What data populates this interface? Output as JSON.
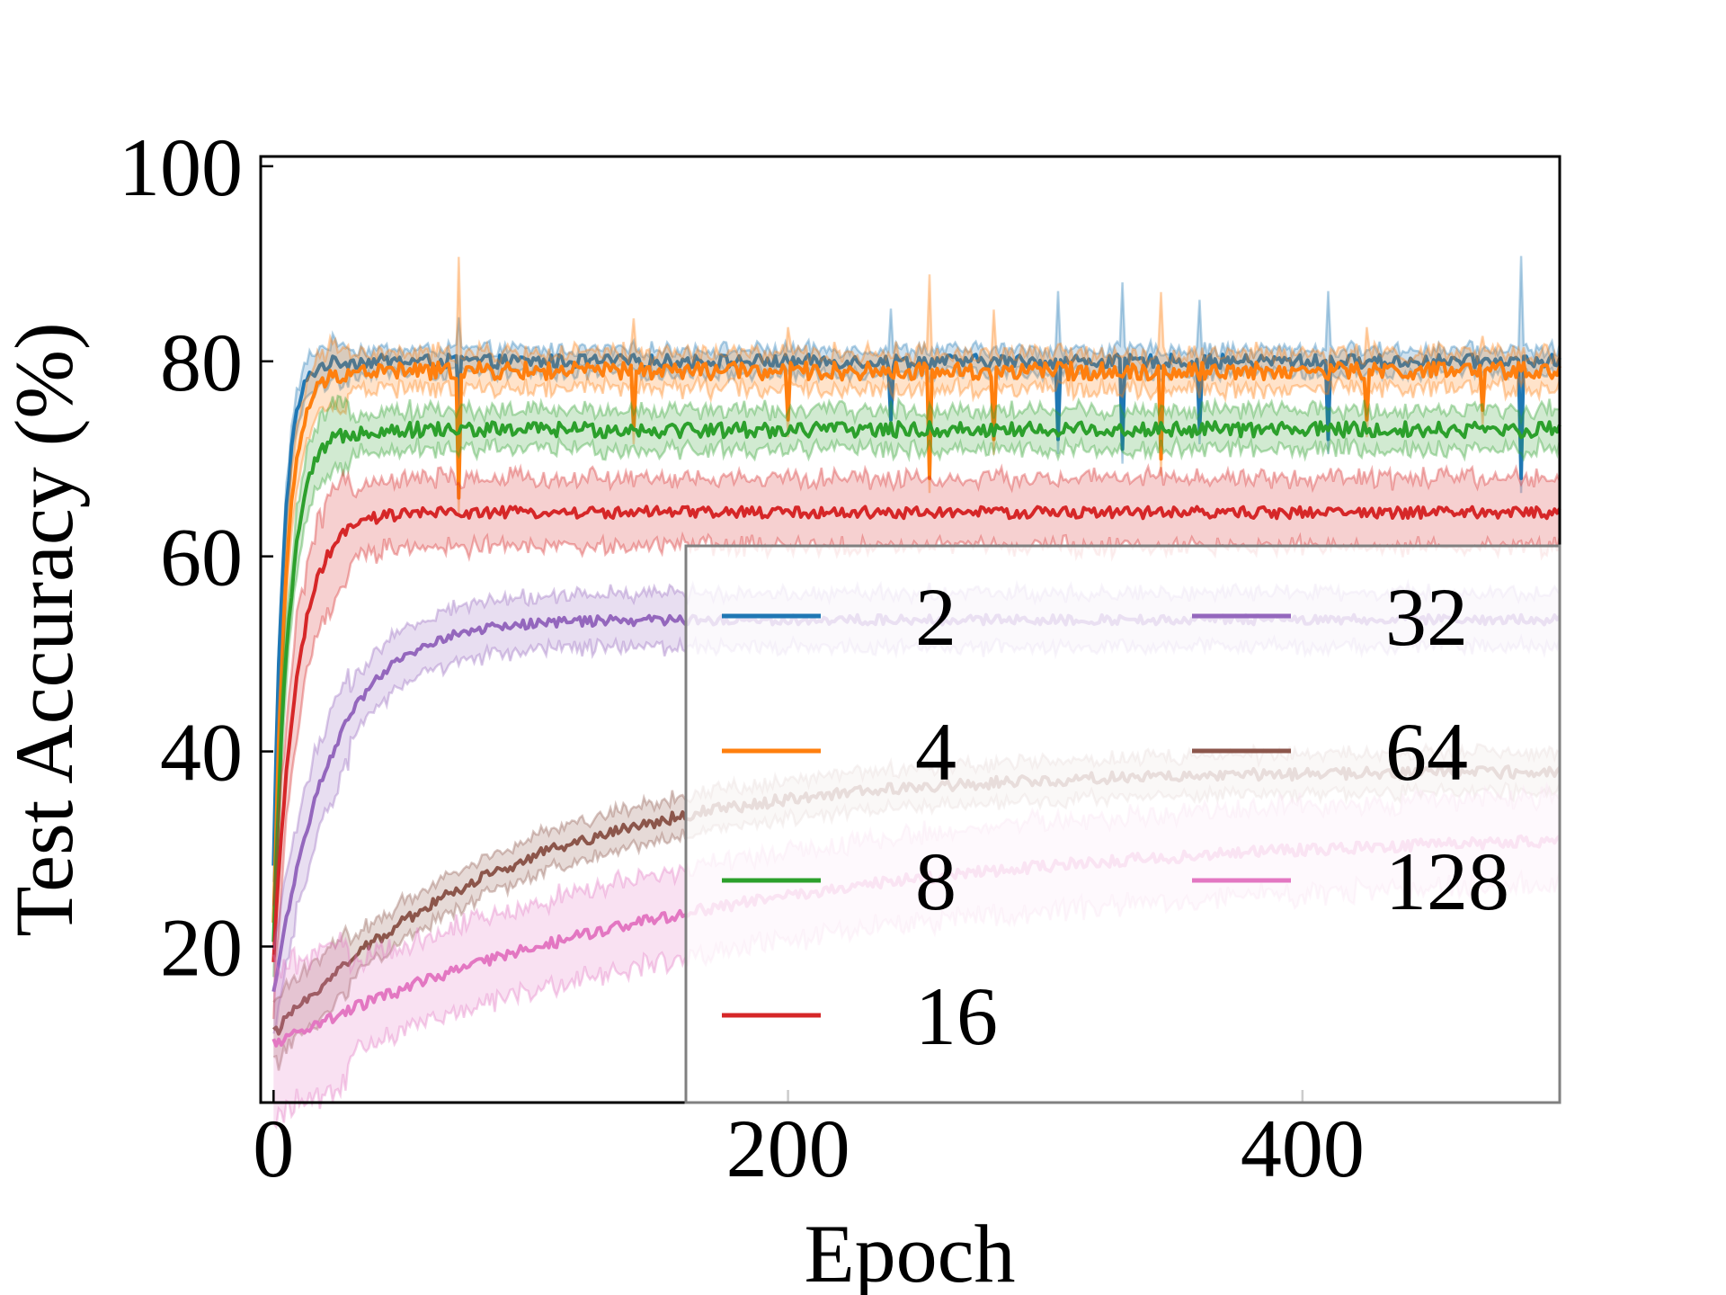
{
  "chart_data": {
    "type": "line",
    "title": "",
    "xlabel": "Epoch",
    "ylabel": "Test Accuracy (%)",
    "xlim": [
      -5,
      500
    ],
    "ylim": [
      4,
      101
    ],
    "xticks": [
      0,
      200,
      400
    ],
    "yticks": [
      20,
      40,
      60,
      80,
      100
    ],
    "xtick_labels": [
      "0",
      "200",
      "400"
    ],
    "ytick_labels": [
      "20",
      "40",
      "60",
      "80",
      "100"
    ],
    "grid": false,
    "legend": {
      "position": "lower-right",
      "columns": 2
    },
    "series": [
      {
        "name": "2",
        "color": "#1f77b4",
        "start": 28,
        "plateau": 80,
        "tau": 4,
        "noise": 0.7,
        "band": 1.2,
        "spike_dir": -1,
        "spikes": [
          [
            72,
            75
          ],
          [
            240,
            74
          ],
          [
            305,
            72
          ],
          [
            330,
            71
          ],
          [
            360,
            73
          ],
          [
            410,
            72
          ],
          [
            485,
            68
          ]
        ]
      },
      {
        "name": "4",
        "color": "#ff7f0e",
        "start": 22,
        "plateau": 79,
        "tau": 5,
        "noise": 0.9,
        "band": 1.8,
        "spike_dir": -1,
        "spikes": [
          [
            72,
            66
          ],
          [
            140,
            73
          ],
          [
            200,
            74
          ],
          [
            255,
            68
          ],
          [
            280,
            72
          ],
          [
            345,
            70
          ],
          [
            425,
            74
          ],
          [
            470,
            75
          ]
        ]
      },
      {
        "name": "8",
        "color": "#2ca02c",
        "start": 20,
        "plateau": 73,
        "tau": 6,
        "noise": 0.8,
        "band": 2.0,
        "spike_dir": 0,
        "spikes": []
      },
      {
        "name": "16",
        "color": "#d62728",
        "start": 18,
        "plateau": 64.5,
        "tau": 9,
        "noise": 0.6,
        "band": 3.5,
        "spike_dir": 0,
        "spikes": []
      },
      {
        "name": "32",
        "color": "#9467bd",
        "start": 15,
        "plateau": 53.5,
        "tau": 22,
        "noise": 0.5,
        "band": 2.8,
        "spike_dir": 0,
        "spikes": []
      },
      {
        "name": "64",
        "color": "#8c564b",
        "start": 11,
        "plateau": 38,
        "tau": 90,
        "noise": 0.6,
        "band": 2.0,
        "spike_dir": 0,
        "spikes": []
      },
      {
        "name": "128",
        "color": "#e377c2",
        "start": 10,
        "plateau": 32,
        "tau": 170,
        "noise": 0.6,
        "band": 4.5,
        "spike_dir": 0,
        "spikes": []
      }
    ]
  }
}
